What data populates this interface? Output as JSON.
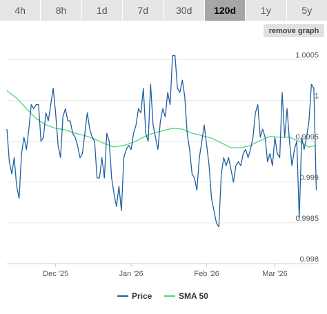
{
  "tabs": [
    {
      "label": "4h",
      "active": false
    },
    {
      "label": "8h",
      "active": false
    },
    {
      "label": "1d",
      "active": false
    },
    {
      "label": "7d",
      "active": false
    },
    {
      "label": "30d",
      "active": false
    },
    {
      "label": "120d",
      "active": true
    },
    {
      "label": "1y",
      "active": false
    },
    {
      "label": "5y",
      "active": false
    }
  ],
  "remove_graph_label": "remove graph",
  "colors": {
    "price": "#1f5f9f",
    "sma": "#4bd67e",
    "grid": "#e6e6e6"
  },
  "chart_data": {
    "type": "line",
    "title": "",
    "xlabel": "",
    "ylabel": "",
    "ylim": [
      0.998,
      1.0007
    ],
    "y_ticks": [
      {
        "value": 1.0005,
        "label": "1.0005"
      },
      {
        "value": 1.0,
        "label": "1"
      },
      {
        "value": 0.9995,
        "label": "0.9995"
      },
      {
        "value": 0.999,
        "label": "0.999"
      },
      {
        "value": 0.9985,
        "label": "0.9985"
      },
      {
        "value": 0.998,
        "label": "0.998"
      }
    ],
    "x_ticks": [
      {
        "x": 20,
        "label": "Dec '25"
      },
      {
        "x": 51,
        "label": "Jan '26"
      },
      {
        "x": 82,
        "label": "Feb '26"
      },
      {
        "x": 110,
        "label": "Mar '26"
      }
    ],
    "xlim": [
      0,
      128
    ],
    "grid": true,
    "legend_position": "bottom",
    "series": [
      {
        "name": "Price",
        "color": "#1f5f9f",
        "x": [
          0,
          1,
          2,
          3,
          4,
          5,
          6,
          7,
          8,
          9,
          10,
          11,
          12,
          13,
          14,
          15,
          16,
          17,
          18,
          19,
          20,
          21,
          22,
          23,
          24,
          25,
          26,
          27,
          28,
          29,
          30,
          31,
          32,
          33,
          34,
          35,
          36,
          37,
          38,
          39,
          40,
          41,
          42,
          43,
          44,
          45,
          46,
          47,
          48,
          49,
          50,
          51,
          52,
          53,
          54,
          55,
          56,
          57,
          58,
          59,
          60,
          61,
          62,
          63,
          64,
          65,
          66,
          67,
          68,
          69,
          70,
          71,
          72,
          73,
          74,
          75,
          76,
          77,
          78,
          79,
          80,
          81,
          82,
          83,
          84,
          85,
          86,
          87,
          88,
          89,
          90,
          91,
          92,
          93,
          94,
          95,
          96,
          97,
          98,
          99,
          100,
          101,
          102,
          103,
          104,
          105,
          106,
          107,
          108,
          109,
          110,
          111,
          112,
          113,
          114,
          115,
          116,
          117,
          118,
          119,
          120,
          121,
          122,
          123,
          124,
          125,
          126,
          127
        ],
        "values": [
          0.99965,
          0.99925,
          0.9991,
          0.9993,
          0.99895,
          0.9988,
          0.99935,
          0.99955,
          0.9994,
          0.99965,
          0.99995,
          0.9999,
          0.99995,
          0.99995,
          0.9995,
          0.99955,
          0.99985,
          0.99975,
          0.99995,
          1.00015,
          0.99985,
          0.99945,
          0.9993,
          0.9998,
          0.9999,
          0.99975,
          0.99975,
          0.9996,
          0.99955,
          0.99945,
          0.9993,
          0.99935,
          0.9996,
          0.99985,
          0.99965,
          0.99955,
          0.9995,
          0.99905,
          0.99905,
          0.9993,
          0.99905,
          0.9996,
          0.9995,
          0.99905,
          0.99885,
          0.9987,
          0.99895,
          0.99865,
          0.9993,
          0.9994,
          0.99945,
          0.9994,
          0.9996,
          0.9997,
          0.9999,
          0.99985,
          1.00015,
          0.9996,
          0.9995,
          1.0002,
          0.9997,
          0.99955,
          0.9994,
          0.99975,
          0.9999,
          0.9998,
          1.0001,
          0.99995,
          1.00055,
          1.00055,
          1.00015,
          1.0001,
          1.00025,
          1.00005,
          0.9996,
          0.9994,
          0.9991,
          0.99905,
          0.9989,
          0.9993,
          0.9995,
          0.9997,
          0.99945,
          0.9992,
          0.9988,
          0.99865,
          0.9985,
          0.99845,
          0.9991,
          0.9993,
          0.9992,
          0.9993,
          0.99915,
          0.999,
          0.9992,
          0.99925,
          0.9992,
          0.99935,
          0.9994,
          0.9993,
          0.9994,
          0.99955,
          0.99985,
          0.99995,
          0.99955,
          0.99965,
          0.99955,
          0.99925,
          0.99935,
          0.9992,
          0.99955,
          0.99935,
          0.9993,
          1.0001,
          0.99955,
          0.9999,
          0.9995,
          0.9992,
          0.9994,
          0.9995,
          0.99855,
          0.99955,
          0.9994,
          0.99955,
          0.99975,
          1.0002,
          1.00015,
          0.9989
        ],
        "note_color": "line"
      },
      {
        "name": "SMA 50",
        "color": "#4bd67e",
        "x": [
          0,
          4,
          8,
          12,
          16,
          20,
          24,
          28,
          32,
          36,
          40,
          44,
          48,
          52,
          56,
          60,
          64,
          68,
          72,
          76,
          80,
          84,
          88,
          92,
          96,
          100,
          104,
          108,
          112,
          116,
          120,
          124,
          127
        ],
        "values": [
          1.00012,
          1.00003,
          0.9999,
          0.99978,
          0.9997,
          0.99966,
          0.99964,
          0.9996,
          0.99957,
          0.99953,
          0.99947,
          0.99943,
          0.99945,
          0.99949,
          0.99955,
          0.9996,
          0.99963,
          0.99966,
          0.99965,
          0.9996,
          0.99957,
          0.99954,
          0.99948,
          0.99942,
          0.99942,
          0.99945,
          0.99951,
          0.99956,
          0.99955,
          0.99955,
          0.9995,
          0.99943,
          0.99945
        ]
      }
    ]
  }
}
